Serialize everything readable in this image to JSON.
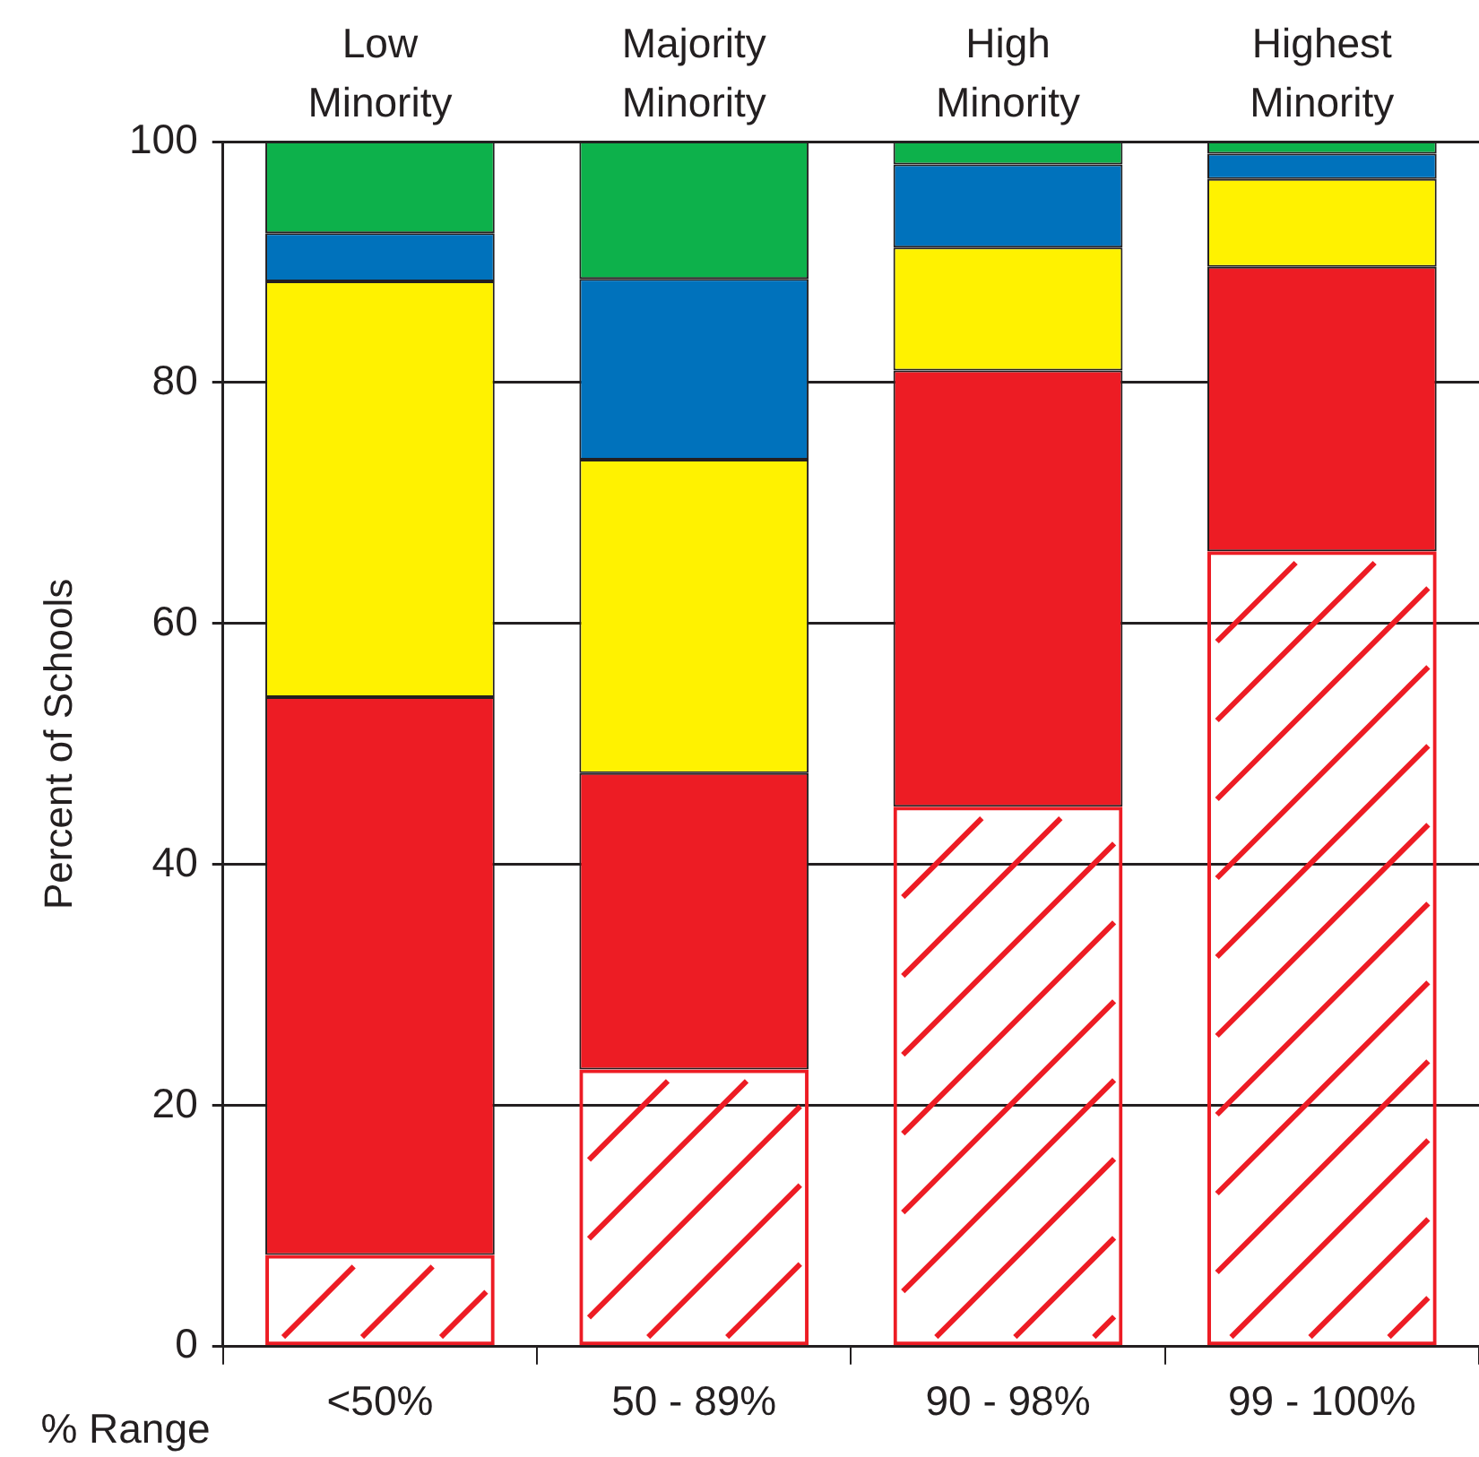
{
  "chart_data": {
    "type": "bar",
    "stacked": true,
    "ylabel": "Percent of Schools",
    "xlabel": "% Range",
    "categories": [
      "<50%",
      "50 - 89%",
      "90 - 98%",
      "99 - 100%"
    ],
    "ylim": [
      0,
      100
    ],
    "yticks": [
      0,
      20,
      40,
      60,
      80,
      100
    ],
    "grid": "y",
    "legend": false,
    "annotations": [
      "Low Minority",
      "Majority Minority",
      "High Minority",
      "Highest Minority"
    ],
    "series": [
      {
        "color": "#ed1c24",
        "values": [
          7.6,
          23,
          44.8,
          66
        ]
      },
      {
        "color": "#ed1c24",
        "values": [
          46.3,
          24.6,
          36.2,
          23.6
        ]
      },
      {
        "color": "#fff200",
        "values": [
          34.5,
          26,
          10.2,
          7.3
        ]
      },
      {
        "color": "#0072bc",
        "values": [
          4,
          15,
          6.9,
          2.1
        ]
      },
      {
        "color": "#0db14b",
        "values": [
          7.6,
          11.4,
          1.9,
          1
        ]
      }
    ]
  }
}
